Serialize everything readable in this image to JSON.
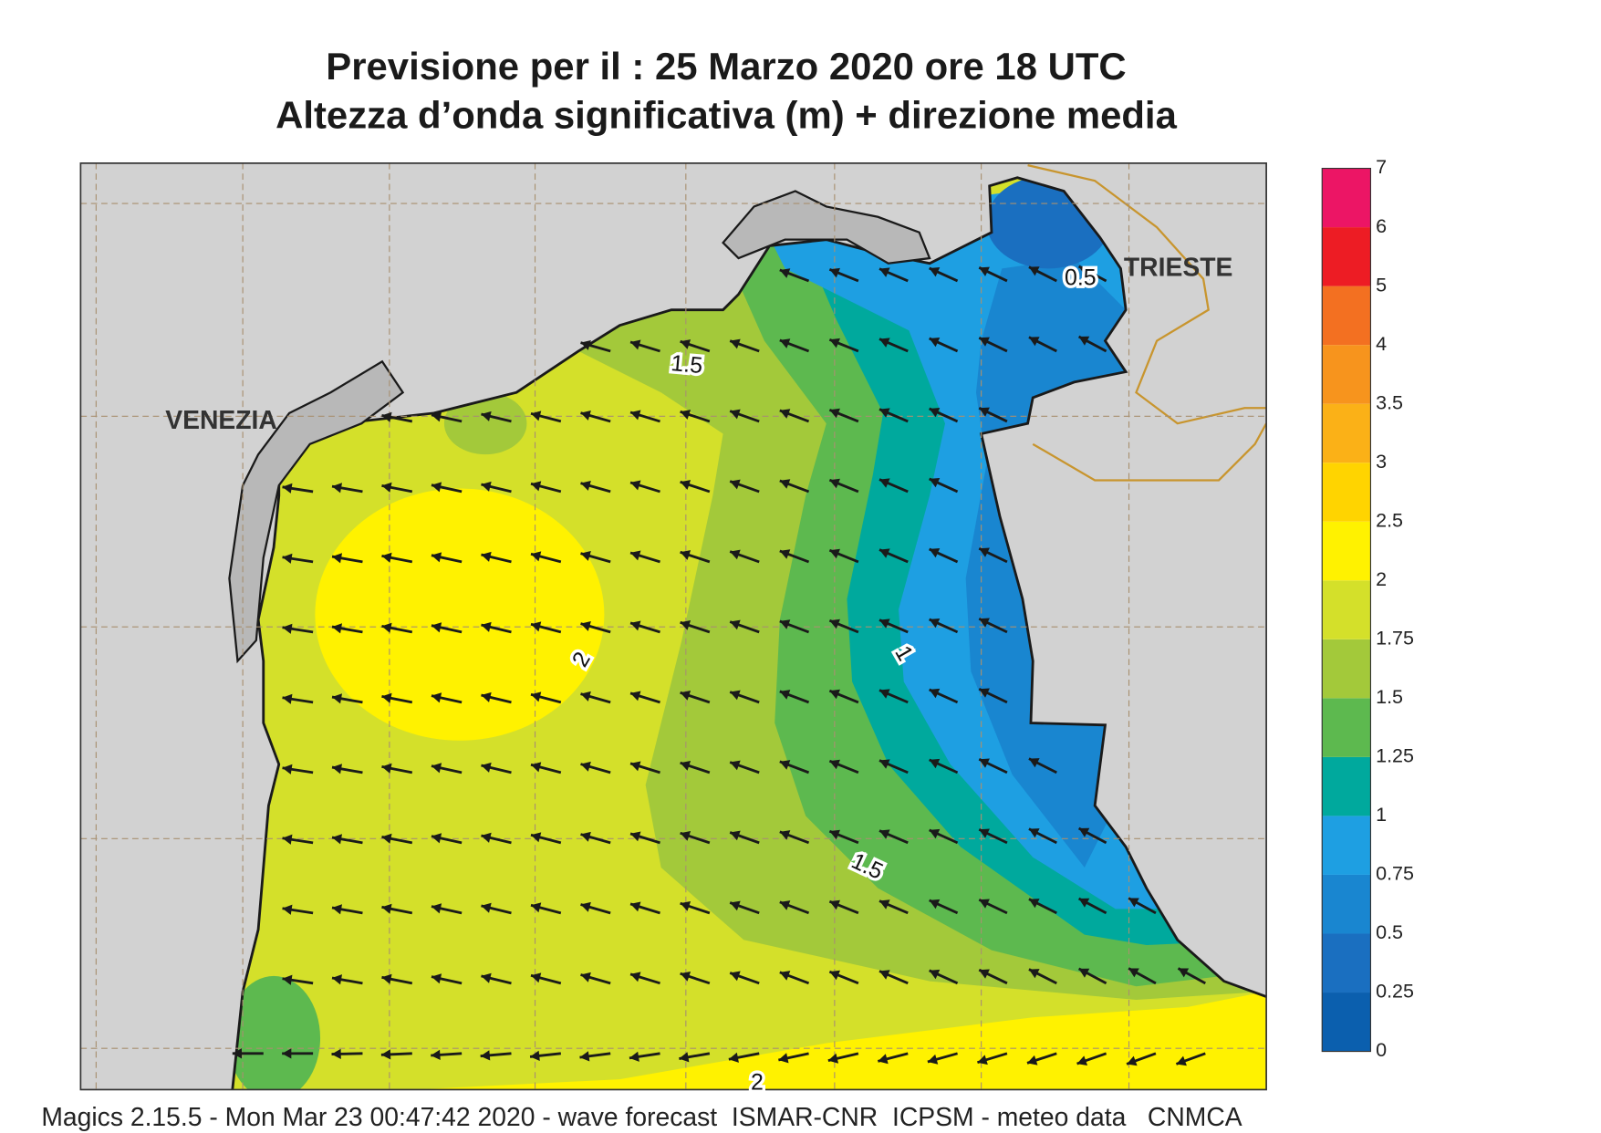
{
  "header": {
    "title_line1": "Previsione per il  :  25   Marzo   2020   ore 18 UTC",
    "title_line2": "Altezza d’onda significativa (m) + direzione media"
  },
  "map": {
    "places": [
      "VENEZIA",
      "TRIESTE"
    ],
    "contour_labels": [
      "0.5",
      "1.5",
      "2",
      "1",
      "1.5",
      "2"
    ]
  },
  "colorbar": {
    "ticks": [
      0,
      0.25,
      0.5,
      0.75,
      1,
      1.25,
      1.5,
      1.75,
      2,
      2.5,
      3,
      3.5,
      4,
      5,
      6,
      7
    ],
    "colors": [
      "#0b5fae",
      "#1a6fc0",
      "#1986d0",
      "#1e9fe2",
      "#00a99d",
      "#5db94f",
      "#a3c93a",
      "#d4e02a",
      "#fff200",
      "#ffd400",
      "#fbb117",
      "#f7941d",
      "#f37021",
      "#ed1c24",
      "#ec1565"
    ]
  },
  "footer": "Magics 2.15.5 - Mon Mar 23 00:47:42 2020 - wave forecast  ISMAR-CNR  ICPSM - meteo data   CNMCA"
}
